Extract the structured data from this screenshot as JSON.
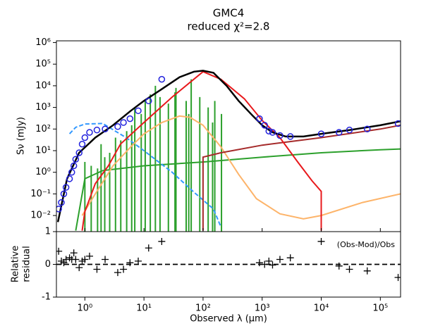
{
  "chart_data": [
    {
      "type": "line",
      "title": "GMC4",
      "subtitle": "reduced χ²=2.8",
      "y_label": "Sν (mJy)",
      "xlog": true,
      "ylog": true,
      "xlim": [
        0.33,
        220000
      ],
      "ylim": [
        0.0018,
        1200000
      ],
      "xticks": [
        {
          "value": 1,
          "label": "10⁰"
        },
        {
          "value": 10,
          "label": "10¹"
        },
        {
          "value": 100,
          "label": "10²"
        },
        {
          "value": 1000,
          "label": "10³"
        },
        {
          "value": 10000,
          "label": "10⁴"
        },
        {
          "value": 100000,
          "label": "10⁵"
        }
      ],
      "yticks": [
        {
          "value": 0.01,
          "label": "10⁻²"
        },
        {
          "value": 0.1,
          "label": "10⁻¹"
        },
        {
          "value": 1,
          "label": "10⁰"
        },
        {
          "value": 10,
          "label": "10¹"
        },
        {
          "value": 100,
          "label": "10²"
        },
        {
          "value": 1000,
          "label": "10³"
        },
        {
          "value": 10000,
          "label": "10⁴"
        },
        {
          "value": 100000,
          "label": "10⁵"
        },
        {
          "value": 1000000,
          "label": "10⁶"
        }
      ],
      "series": [
        {
          "color": "#2ca02c",
          "style": "spikes",
          "x": [
            1.0,
            1.28,
            1.64,
            1.88,
            2.17,
            2.63,
            3.3,
            4.05,
            5.1,
            6.2,
            6.99,
            8.99,
            10.5,
            12.8,
            15.6,
            18.7,
            25.9,
            33.5,
            34.8,
            51.8,
            57.3,
            63,
            88,
            122,
            145,
            158,
            205
          ],
          "values": [
            3,
            2,
            1.5,
            20,
            5,
            8,
            40,
            30,
            80,
            150,
            1000,
            500,
            2000,
            4000,
            10000,
            3000,
            1500,
            5000,
            8000,
            2000,
            500,
            20000,
            3000,
            1000,
            200,
            2000,
            500
          ]
        },
        {
          "color": "#2ca02c",
          "style": "line",
          "x": [
            0.7,
            1,
            2,
            10,
            100,
            1000,
            10000,
            100000,
            220000
          ],
          "values": [
            0.002,
            0.5,
            1.2,
            2,
            3,
            5,
            8,
            11,
            12
          ]
        },
        {
          "color": "#3399ff",
          "style": "dashed",
          "x": [
            0.55,
            0.7,
            1,
            2,
            5,
            10,
            30,
            70,
            150,
            200
          ],
          "values": [
            60,
            120,
            170,
            180,
            40,
            10,
            1,
            0.12,
            0.02,
            0.003
          ]
        },
        {
          "color": "#fdb46a",
          "style": "line",
          "x": [
            0.9,
            1.5,
            3,
            6,
            10,
            20,
            40,
            60,
            100,
            200,
            400,
            800,
            2000,
            5000,
            10000,
            50000,
            220000
          ],
          "values": [
            0.01,
            0.1,
            2,
            15,
            60,
            200,
            400,
            350,
            150,
            15,
            0.8,
            0.06,
            0.012,
            0.007,
            0.01,
            0.04,
            0.1
          ]
        },
        {
          "color": "#a52a2a",
          "style": "line",
          "x": [
            100,
            100,
            200,
            1000,
            10000,
            100000,
            220000
          ],
          "values": [
            0.002,
            5,
            8,
            18,
            40,
            100,
            150
          ]
        },
        {
          "color": "#e8191c",
          "style": "line",
          "x": [
            0.9,
            1,
            1.5,
            2.5,
            4,
            10,
            30,
            100,
            200,
            500,
            1000,
            2000,
            4000,
            7000,
            10000,
            10000
          ],
          "values": [
            0.002,
            0.015,
            0.3,
            2,
            20,
            200,
            3000,
            45000,
            20000,
            2500,
            250,
            40,
            3,
            0.4,
            0.13,
            0.002
          ]
        },
        {
          "color": "#000000",
          "style": "line",
          "x": [
            0.35,
            0.5,
            0.8,
            1.5,
            3,
            6,
            10,
            20,
            40,
            70,
            100,
            150,
            250,
            400,
            700,
            1000,
            1500,
            2500,
            5000,
            10000,
            30000,
            100000,
            220000
          ],
          "values": [
            0.005,
            0.5,
            8,
            40,
            150,
            700,
            2000,
            7000,
            25000,
            45000,
            50000,
            40000,
            10000,
            2000,
            400,
            150,
            70,
            45,
            45,
            60,
            90,
            150,
            230
          ]
        },
        {
          "color": "#2222dd",
          "style": "points",
          "x": [
            0.36,
            0.4,
            0.44,
            0.48,
            0.55,
            0.6,
            0.65,
            0.7,
            0.8,
            0.9,
            1.0,
            1.2,
            1.6,
            2.2,
            3.6,
            4.5,
            5.8,
            8,
            12,
            20,
            900,
            1100,
            1300,
            1500,
            2000,
            3000,
            10000,
            20000,
            30000,
            60000,
            200000
          ],
          "values": [
            0.02,
            0.04,
            0.1,
            0.2,
            0.5,
            1,
            2,
            4,
            8,
            20,
            40,
            70,
            90,
            100,
            130,
            200,
            300,
            700,
            2000,
            20000,
            300,
            150,
            80,
            70,
            50,
            45,
            60,
            70,
            90,
            100,
            180
          ]
        }
      ]
    },
    {
      "type": "scatter",
      "x_label": "Observed λ (μm)",
      "y_label": [
        "Relative",
        "residual"
      ],
      "annotation": "(Obs-Mod)/Obs",
      "xlog": true,
      "xlim": [
        0.33,
        220000
      ],
      "ylim": [
        -1,
        1
      ],
      "xticks": [
        {
          "value": 1,
          "label": "10⁰"
        },
        {
          "value": 10,
          "label": "10¹"
        },
        {
          "value": 100,
          "label": "10²"
        },
        {
          "value": 1000,
          "label": "10³"
        },
        {
          "value": 10000,
          "label": "10⁴"
        },
        {
          "value": 100000,
          "label": "10⁵"
        }
      ],
      "yticks": [
        -1,
        0,
        1
      ],
      "x": [
        0.36,
        0.4,
        0.44,
        0.48,
        0.55,
        0.6,
        0.65,
        0.7,
        0.8,
        0.9,
        1.0,
        1.2,
        1.6,
        2.2,
        3.6,
        4.5,
        5.8,
        8,
        12,
        20,
        900,
        1100,
        1300,
        1500,
        2000,
        3000,
        10000,
        20000,
        30000,
        60000,
        200000
      ],
      "values": [
        0.4,
        0.1,
        0.05,
        0.15,
        0.2,
        0.15,
        0.35,
        0.15,
        -0.1,
        0.1,
        0.15,
        0.25,
        -0.15,
        0.15,
        -0.25,
        -0.15,
        0.05,
        0.1,
        0.5,
        0.7,
        0.05,
        0.0,
        0.1,
        -0.02,
        0.15,
        0.2,
        0.7,
        -0.05,
        -0.15,
        -0.2,
        -0.4
      ]
    }
  ]
}
